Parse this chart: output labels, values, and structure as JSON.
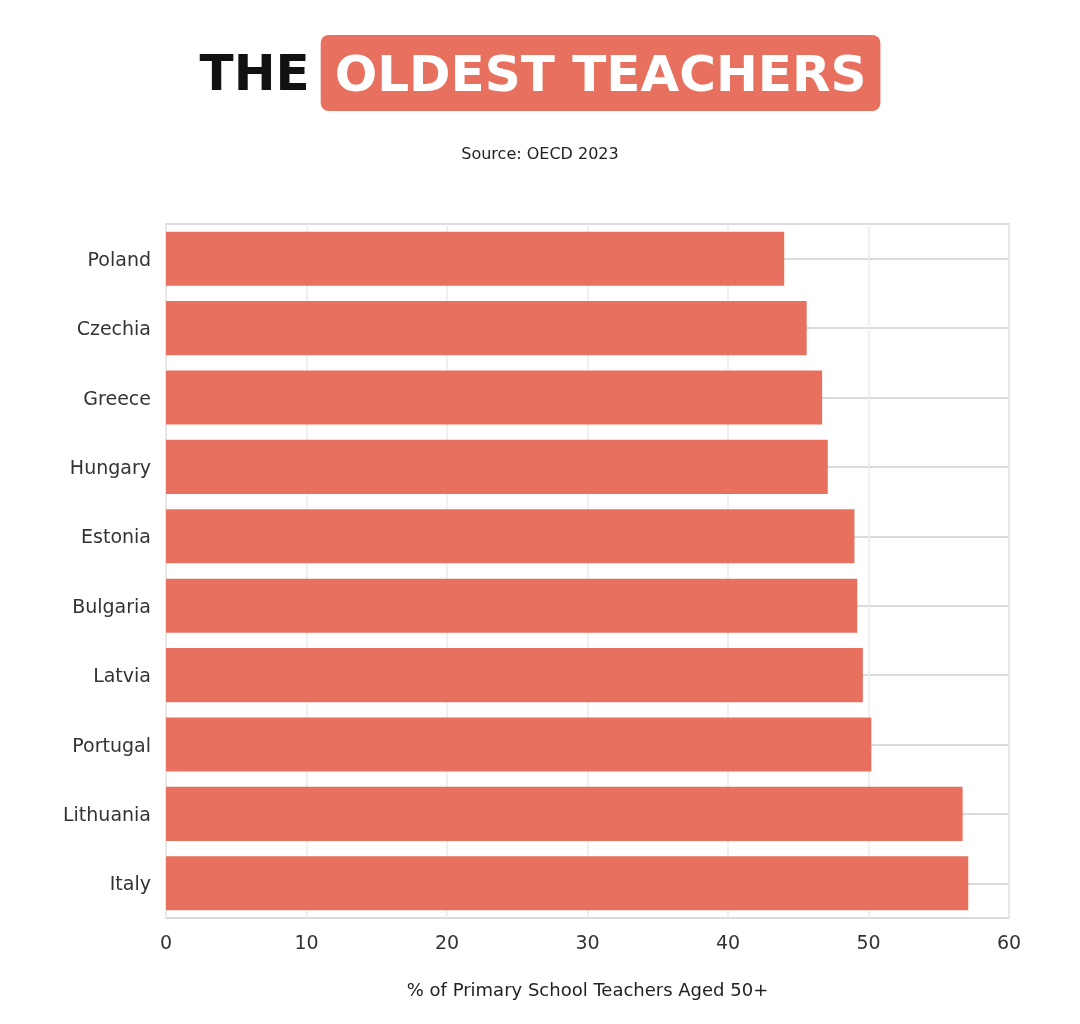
{
  "chart_data": {
    "type": "bar",
    "orientation": "horizontal",
    "title": "THE OLDEST TEACHERS",
    "annotations": [
      "Source: OECD 2023"
    ],
    "xlabel": "% of Primary School Teachers Aged 50+",
    "categories": [
      "Poland",
      "Czechia",
      "Greece",
      "Hungary",
      "Estonia",
      "Bulgaria",
      "Latvia",
      "Portugal",
      "Lithuania",
      "Italy"
    ],
    "values": [
      44.0,
      45.6,
      46.7,
      47.1,
      49.0,
      49.2,
      49.6,
      50.2,
      56.7,
      57.1
    ],
    "color": "#e8705f",
    "xlim": [
      0,
      60
    ],
    "xticks": [
      0,
      10,
      20,
      30,
      40,
      50,
      60
    ],
    "grid": true
  }
}
